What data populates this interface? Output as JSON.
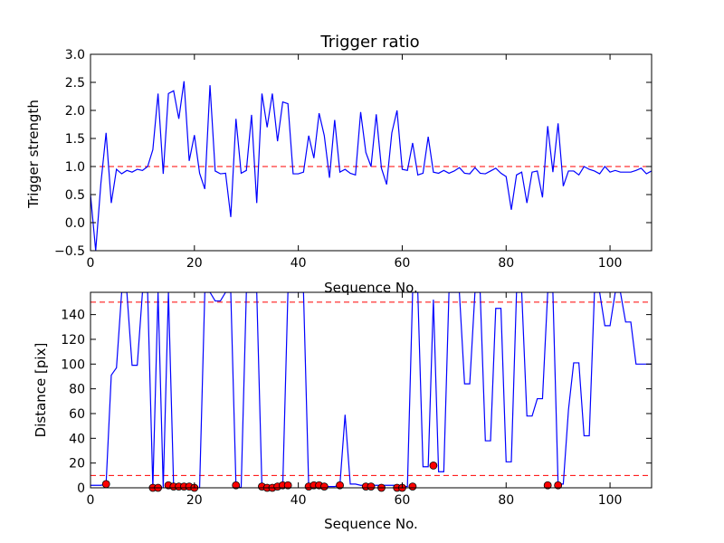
{
  "chart_data": [
    {
      "type": "line",
      "title": "Trigger ratio",
      "xlabel": "Sequence No.",
      "ylabel": "Trigger strength",
      "xlim": [
        0,
        108
      ],
      "ylim": [
        -0.5,
        3.0
      ],
      "xticks": [
        "0",
        "20",
        "40",
        "60",
        "80",
        "100"
      ],
      "yticks": [
        "−0.5",
        "0.0",
        "0.5",
        "1.0",
        "1.5",
        "2.0",
        "2.5",
        "3.0"
      ],
      "grid": false,
      "line_color": "#0000ff",
      "reference_color": "#ff0000",
      "reference_lines": [
        1.0
      ],
      "series": [
        {
          "x": [
            0,
            1,
            2,
            3,
            4,
            5,
            6,
            7,
            8,
            9,
            10,
            11,
            12,
            13,
            14,
            15,
            16,
            17,
            18,
            19,
            20,
            21,
            22,
            23,
            24,
            25,
            26,
            27,
            28,
            29,
            30,
            31,
            32,
            33,
            34,
            35,
            36,
            37,
            38,
            39,
            40,
            41,
            42,
            43,
            44,
            45,
            46,
            47,
            48,
            49,
            50,
            51,
            52,
            53,
            54,
            55,
            56,
            57,
            58,
            59,
            60,
            61,
            62,
            63,
            64,
            65,
            66,
            67,
            68,
            69,
            70,
            71,
            72,
            73,
            74,
            75,
            76,
            77,
            78,
            79,
            80,
            81,
            82,
            83,
            84,
            85,
            86,
            87,
            88,
            89,
            90,
            91,
            92,
            93,
            94,
            95,
            96,
            97,
            98,
            99,
            100,
            101,
            102,
            103,
            104,
            105,
            106,
            107,
            108
          ],
          "y": [
            0.5,
            -0.5,
            0.7,
            1.6,
            0.35,
            0.95,
            0.87,
            0.93,
            0.9,
            0.95,
            0.93,
            1.0,
            1.3,
            2.3,
            0.87,
            2.3,
            2.35,
            1.85,
            2.52,
            1.1,
            1.56,
            0.88,
            0.6,
            2.45,
            0.92,
            0.87,
            0.88,
            0.1,
            1.85,
            0.88,
            0.93,
            1.92,
            0.35,
            2.3,
            1.7,
            2.3,
            1.45,
            2.15,
            2.12,
            0.87,
            0.87,
            0.9,
            1.55,
            1.15,
            1.95,
            1.55,
            0.8,
            1.83,
            0.9,
            0.95,
            0.88,
            0.85,
            1.97,
            1.25,
            1.0,
            1.93,
            0.97,
            0.68,
            1.6,
            2.0,
            0.95,
            0.93,
            1.42,
            0.85,
            0.88,
            1.53,
            0.9,
            0.88,
            0.93,
            0.88,
            0.92,
            0.98,
            0.88,
            0.87,
            0.98,
            0.88,
            0.87,
            0.92,
            0.97,
            0.88,
            0.82,
            0.23,
            0.85,
            0.9,
            0.35,
            0.9,
            0.92,
            0.45,
            1.72,
            0.9,
            1.77,
            0.65,
            0.92,
            0.92,
            0.85,
            1.0,
            0.95,
            0.92,
            0.87,
            1.0,
            0.9,
            0.93,
            0.9,
            0.9,
            0.9,
            0.93,
            0.97,
            0.87,
            0.92
          ]
        }
      ]
    },
    {
      "type": "line",
      "title": "",
      "xlabel": "Sequence No.",
      "ylabel": "Distance [pix]",
      "xlim": [
        0,
        108
      ],
      "ylim": [
        0,
        158
      ],
      "xticks": [
        "0",
        "20",
        "40",
        "60",
        "80",
        "100"
      ],
      "yticks": [
        "0",
        "20",
        "40",
        "60",
        "80",
        "100",
        "120",
        "140"
      ],
      "grid": false,
      "line_color": "#0000ff",
      "reference_color": "#ff0000",
      "reference_lines": [
        10,
        150
      ],
      "series": [
        {
          "x": [
            0,
            1,
            2,
            3,
            4,
            5,
            6,
            7,
            8,
            9,
            10,
            11,
            12,
            13,
            14,
            15,
            16,
            17,
            18,
            19,
            20,
            21,
            22,
            23,
            24,
            25,
            26,
            27,
            28,
            29,
            30,
            31,
            32,
            33,
            34,
            35,
            36,
            37,
            38,
            39,
            40,
            41,
            42,
            43,
            44,
            45,
            46,
            47,
            48,
            49,
            50,
            51,
            52,
            53,
            54,
            55,
            56,
            57,
            58,
            59,
            60,
            61,
            62,
            63,
            64,
            65,
            66,
            67,
            68,
            69,
            70,
            71,
            72,
            73,
            74,
            75,
            76,
            77,
            78,
            79,
            80,
            81,
            82,
            83,
            84,
            85,
            86,
            87,
            88,
            89,
            90,
            91,
            92,
            93,
            94,
            95,
            96,
            97,
            98,
            99,
            100,
            101,
            102,
            103,
            104,
            105,
            106,
            107,
            108
          ],
          "y": [
            2,
            2,
            2,
            3,
            91,
            97,
            158,
            158,
            99,
            99,
            158,
            158,
            0,
            158,
            0,
            158,
            1,
            1,
            1,
            1,
            0,
            0,
            158,
            158,
            151,
            151,
            158,
            158,
            2,
            0,
            158,
            158,
            158,
            0,
            0,
            0,
            1,
            1,
            158,
            158,
            158,
            158,
            1,
            1,
            1,
            1,
            1,
            1,
            2,
            59,
            3,
            3,
            2,
            2,
            2,
            2,
            2,
            2,
            2,
            2,
            1,
            1,
            158,
            158,
            17,
            17,
            152,
            13,
            13,
            158,
            158,
            158,
            84,
            84,
            158,
            158,
            38,
            38,
            145,
            145,
            21,
            21,
            158,
            158,
            58,
            58,
            72,
            72,
            158,
            158,
            3,
            3,
            63,
            101,
            101,
            42,
            42,
            158,
            158,
            131,
            131,
            158,
            158,
            134,
            134,
            100,
            100,
            100,
            100
          ]
        }
      ],
      "markers": {
        "color": "#ff0000",
        "points": [
          [
            3,
            3
          ],
          [
            12,
            0
          ],
          [
            13,
            0
          ],
          [
            15,
            2
          ],
          [
            16,
            1
          ],
          [
            17,
            1
          ],
          [
            18,
            1
          ],
          [
            19,
            1
          ],
          [
            20,
            0
          ],
          [
            28,
            2
          ],
          [
            33,
            1
          ],
          [
            34,
            0
          ],
          [
            35,
            0
          ],
          [
            36,
            1
          ],
          [
            37,
            2
          ],
          [
            38,
            2
          ],
          [
            42,
            1
          ],
          [
            43,
            2
          ],
          [
            44,
            2
          ],
          [
            45,
            1
          ],
          [
            48,
            2
          ],
          [
            53,
            1
          ],
          [
            54,
            1
          ],
          [
            56,
            0
          ],
          [
            59,
            0
          ],
          [
            60,
            0
          ],
          [
            62,
            1
          ],
          [
            66,
            18
          ],
          [
            88,
            2
          ],
          [
            90,
            2
          ]
        ]
      }
    }
  ]
}
